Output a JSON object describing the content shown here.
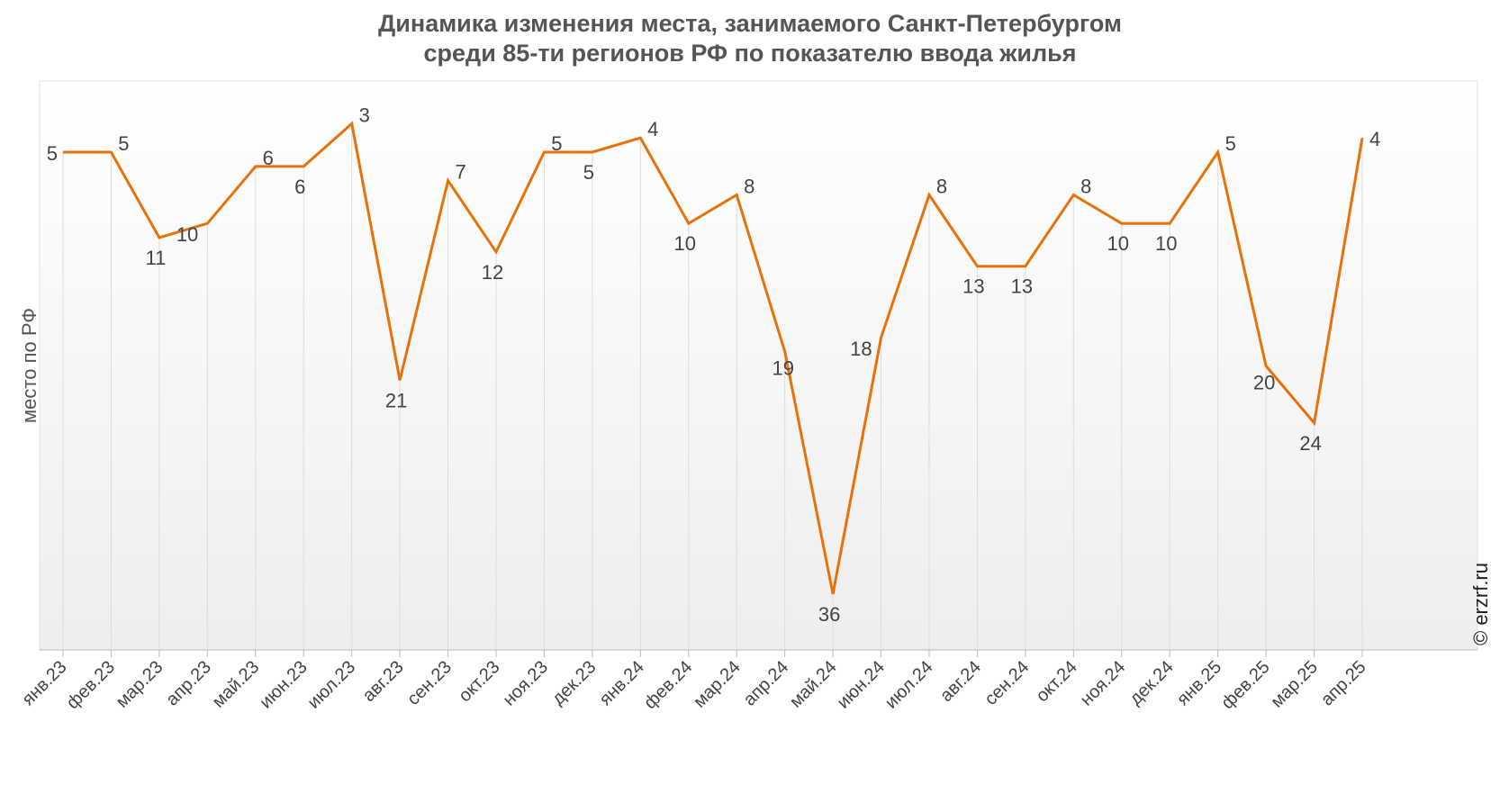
{
  "chart_data": {
    "type": "line",
    "title_line1": "Динамика изменения места, занимаемого Санкт-Петербургом",
    "title_line2": "среди 85-ти регионов РФ по показателю ввода жилья",
    "xlabel": "",
    "ylabel": "место по РФ",
    "ylim": [
      40,
      1
    ],
    "y_inverted": true,
    "grid": "vertical",
    "categories": [
      "янв.23",
      "фев.23",
      "мар.23",
      "апр.23",
      "май.23",
      "июн.23",
      "июл.23",
      "авг.23",
      "сен.23",
      "окт.23",
      "ноя.23",
      "дек.23",
      "янв.24",
      "фев.24",
      "мар.24",
      "апр.24",
      "май.24",
      "июн.24",
      "июл.24",
      "авг.24",
      "сен.24",
      "окт.24",
      "ноя.24",
      "дек.24",
      "янв.25",
      "фев.25",
      "мар.25",
      "апр.25"
    ],
    "series": [
      {
        "values": [
          5,
          5,
          11,
          10,
          6,
          6,
          3,
          21,
          7,
          12,
          5,
          5,
          4,
          10,
          8,
          19,
          36,
          18,
          8,
          13,
          13,
          8,
          10,
          10,
          5,
          20,
          24,
          4
        ]
      }
    ],
    "line_color": "#E8710A",
    "grid_color": "#DDDDDD"
  },
  "watermark": "© erzrf.ru"
}
